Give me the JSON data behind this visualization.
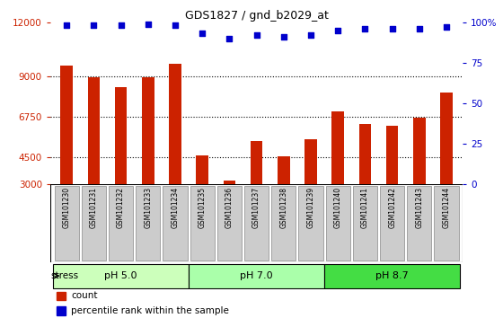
{
  "title": "GDS1827 / gnd_b2029_at",
  "samples": [
    "GSM101230",
    "GSM101231",
    "GSM101232",
    "GSM101233",
    "GSM101234",
    "GSM101235",
    "GSM101236",
    "GSM101237",
    "GSM101238",
    "GSM101239",
    "GSM101240",
    "GSM101241",
    "GSM101242",
    "GSM101243",
    "GSM101244"
  ],
  "counts": [
    9600,
    8950,
    8400,
    8950,
    9700,
    4600,
    3200,
    5400,
    4550,
    5500,
    7050,
    6350,
    6250,
    6700,
    8100
  ],
  "percentiles": [
    98,
    98,
    98,
    99,
    98,
    93,
    90,
    92,
    91,
    92,
    95,
    96,
    96,
    96,
    97
  ],
  "bar_color": "#cc2200",
  "dot_color": "#0000cc",
  "ylim_left": [
    3000,
    12000
  ],
  "ylim_right": [
    0,
    100
  ],
  "yticks_left": [
    3000,
    4500,
    6750,
    9000,
    12000
  ],
  "yticks_right": [
    0,
    25,
    50,
    75,
    100
  ],
  "dotted_lines": [
    4500,
    6750,
    9000
  ],
  "groups": [
    {
      "label": "pH 5.0",
      "start": 0,
      "end": 4,
      "color": "#ccffbb"
    },
    {
      "label": "pH 7.0",
      "start": 5,
      "end": 9,
      "color": "#aaffaa"
    },
    {
      "label": "pH 8.7",
      "start": 10,
      "end": 14,
      "color": "#44dd44"
    }
  ],
  "stress_label": "stress",
  "legend_count_label": "count",
  "legend_pct_label": "percentile rank within the sample",
  "background_color": "#ffffff",
  "sample_bg": "#cccccc"
}
